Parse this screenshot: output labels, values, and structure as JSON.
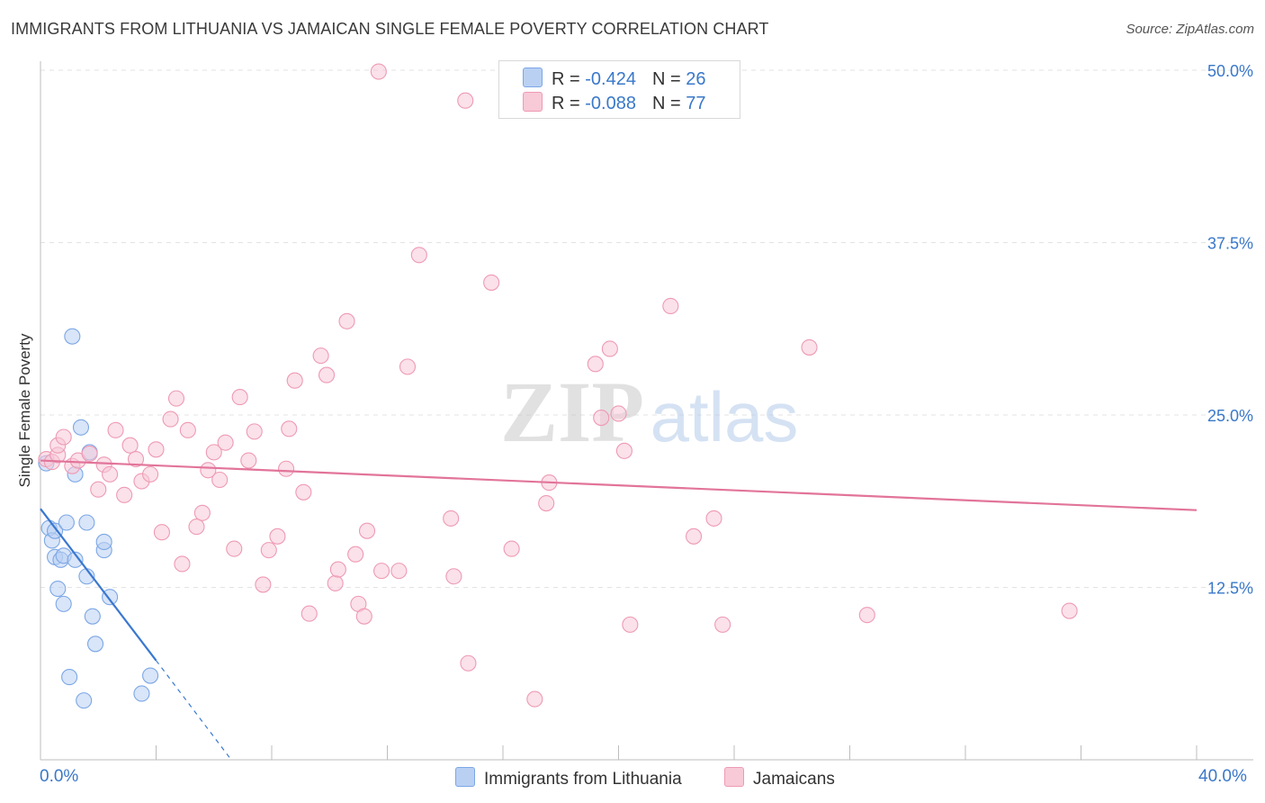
{
  "chart_data": {
    "type": "scatter",
    "title": "IMMIGRANTS FROM LITHUANIA VS JAMAICAN SINGLE FEMALE POVERTY CORRELATION CHART",
    "source": "Source: ZipAtlas.com",
    "xlabel": "",
    "ylabel": "Single Female Poverty",
    "xlim": [
      0,
      40
    ],
    "ylim": [
      0,
      50
    ],
    "x_tick_labels": [
      "0.0%",
      "40.0%"
    ],
    "y_ticks": [
      12.5,
      25.0,
      37.5,
      50.0
    ],
    "y_tick_labels": [
      "12.5%",
      "25.0%",
      "37.5%",
      "50.0%"
    ],
    "grid": true,
    "watermark": "ZIPatlas",
    "legend": {
      "position": "top-center",
      "entries": [
        {
          "r_label": "R =",
          "r_value": "-0.424",
          "n_label": "N =",
          "n_value": "26"
        },
        {
          "r_label": "R =",
          "r_value": "-0.088",
          "n_label": "N =",
          "n_value": "77"
        }
      ]
    },
    "series": [
      {
        "name": "Immigrants from Lithuania",
        "color": "#7ba7e6",
        "fill": "#b9d0f3",
        "trend_color": "#3a78d0",
        "trend": {
          "x0": 0.0,
          "y0": 18.2,
          "x1": 4.0,
          "y1": 7.2,
          "dash_x1": 6.6,
          "dash_y1": 0.0
        },
        "points": [
          [
            0.2,
            21.5
          ],
          [
            0.3,
            16.8
          ],
          [
            0.4,
            15.9
          ],
          [
            0.5,
            16.6
          ],
          [
            0.5,
            14.7
          ],
          [
            0.6,
            12.4
          ],
          [
            0.7,
            14.5
          ],
          [
            0.8,
            14.8
          ],
          [
            0.8,
            11.3
          ],
          [
            0.9,
            17.2
          ],
          [
            1.0,
            6.0
          ],
          [
            1.1,
            30.7
          ],
          [
            1.2,
            20.7
          ],
          [
            1.2,
            14.5
          ],
          [
            1.4,
            24.1
          ],
          [
            1.5,
            4.3
          ],
          [
            1.6,
            17.2
          ],
          [
            1.6,
            13.3
          ],
          [
            1.7,
            22.3
          ],
          [
            1.8,
            10.4
          ],
          [
            1.9,
            8.4
          ],
          [
            2.2,
            15.2
          ],
          [
            2.2,
            15.8
          ],
          [
            2.4,
            11.8
          ],
          [
            3.5,
            4.8
          ],
          [
            3.8,
            6.1
          ]
        ]
      },
      {
        "name": "Jamaicans",
        "color": "#ee9ab4",
        "fill": "#f8c9d7",
        "trend_color": "#e2749a",
        "trend": {
          "x0": 0.0,
          "y0": 21.7,
          "x1": 40.0,
          "y1": 18.1
        },
        "points": [
          [
            0.2,
            21.8
          ],
          [
            0.4,
            21.6
          ],
          [
            0.6,
            22.1
          ],
          [
            0.6,
            22.8
          ],
          [
            0.8,
            23.4
          ],
          [
            1.1,
            21.3
          ],
          [
            1.3,
            21.7
          ],
          [
            1.7,
            22.2
          ],
          [
            2.0,
            19.6
          ],
          [
            2.2,
            21.4
          ],
          [
            2.4,
            20.7
          ],
          [
            2.6,
            23.9
          ],
          [
            2.9,
            19.2
          ],
          [
            3.1,
            22.8
          ],
          [
            3.3,
            21.8
          ],
          [
            3.5,
            20.2
          ],
          [
            3.8,
            20.7
          ],
          [
            4.0,
            22.5
          ],
          [
            4.2,
            16.5
          ],
          [
            4.5,
            24.7
          ],
          [
            4.7,
            26.2
          ],
          [
            4.9,
            14.2
          ],
          [
            5.1,
            23.9
          ],
          [
            5.4,
            16.9
          ],
          [
            5.6,
            17.9
          ],
          [
            5.8,
            21.0
          ],
          [
            6.0,
            22.3
          ],
          [
            6.2,
            20.3
          ],
          [
            6.4,
            23.0
          ],
          [
            6.7,
            15.3
          ],
          [
            6.9,
            26.3
          ],
          [
            7.2,
            21.7
          ],
          [
            7.4,
            23.8
          ],
          [
            7.7,
            12.7
          ],
          [
            7.9,
            15.2
          ],
          [
            8.2,
            16.2
          ],
          [
            8.5,
            21.1
          ],
          [
            8.6,
            24.0
          ],
          [
            8.8,
            27.5
          ],
          [
            9.1,
            19.4
          ],
          [
            9.3,
            10.6
          ],
          [
            9.7,
            29.3
          ],
          [
            9.9,
            27.9
          ],
          [
            10.2,
            12.8
          ],
          [
            10.3,
            13.8
          ],
          [
            10.6,
            31.8
          ],
          [
            10.9,
            14.9
          ],
          [
            11.0,
            11.3
          ],
          [
            11.2,
            10.4
          ],
          [
            11.3,
            16.6
          ],
          [
            11.7,
            49.9
          ],
          [
            11.8,
            13.7
          ],
          [
            12.4,
            13.7
          ],
          [
            12.7,
            28.5
          ],
          [
            13.1,
            36.6
          ],
          [
            14.2,
            17.5
          ],
          [
            14.3,
            13.3
          ],
          [
            14.7,
            47.8
          ],
          [
            14.8,
            7.0
          ],
          [
            15.6,
            34.6
          ],
          [
            16.3,
            15.3
          ],
          [
            17.1,
            4.4
          ],
          [
            17.5,
            18.6
          ],
          [
            17.6,
            20.1
          ],
          [
            19.2,
            28.7
          ],
          [
            19.4,
            24.8
          ],
          [
            19.7,
            29.8
          ],
          [
            20.0,
            25.1
          ],
          [
            20.2,
            22.4
          ],
          [
            20.4,
            9.8
          ],
          [
            21.8,
            32.9
          ],
          [
            22.6,
            16.2
          ],
          [
            23.3,
            17.5
          ],
          [
            23.6,
            9.8
          ],
          [
            26.6,
            29.9
          ],
          [
            28.6,
            10.5
          ],
          [
            35.6,
            10.8
          ]
        ]
      }
    ]
  }
}
